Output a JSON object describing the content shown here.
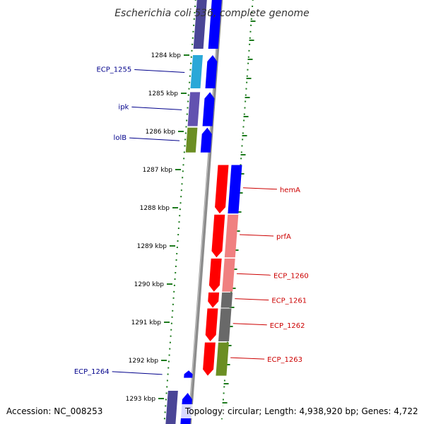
{
  "title": {
    "organism": "Escherichia coli 536",
    "suffix": ", complete genome"
  },
  "footer": {
    "accession": "Accession: NC_008253",
    "topology": "Topology: circular; Length: 4,938,920 bp; Genes: 4,722"
  },
  "ticks": [
    {
      "label": "1284 kbp",
      "kbp": 1284
    },
    {
      "label": "1285 kbp",
      "kbp": 1285
    },
    {
      "label": "1286 kbp",
      "kbp": 1286
    },
    {
      "label": "1287 kbp",
      "kbp": 1287
    },
    {
      "label": "1288 kbp",
      "kbp": 1288
    },
    {
      "label": "1289 kbp",
      "kbp": 1289
    },
    {
      "label": "1290 kbp",
      "kbp": 1290
    },
    {
      "label": "1291 kbp",
      "kbp": 1291
    },
    {
      "label": "1292 kbp",
      "kbp": 1292
    },
    {
      "label": "1293 kbp",
      "kbp": 1293
    }
  ],
  "genes_reverse": [
    {
      "name": "ECP_1255",
      "label": "ECP_1255",
      "start_kbp": 1284.0,
      "end_kbp": 1284.87,
      "cog_color": "#2aa8d8"
    },
    {
      "name": "ipk",
      "label": "ipk",
      "start_kbp": 1284.97,
      "end_kbp": 1285.86,
      "cog_color": "#6252b0"
    },
    {
      "name": "lolB",
      "label": "lolB",
      "start_kbp": 1285.9,
      "end_kbp": 1286.55,
      "cog_color": "#6b8e23"
    },
    {
      "name": "ECP_1264",
      "label": "ECP_1264",
      "start_kbp": 1292.3,
      "end_kbp": 1292.4,
      "cog_color": "#0000ff"
    }
  ],
  "genes_forward": [
    {
      "name": "hemA",
      "label": "hemA",
      "start_kbp": 1286.88,
      "end_kbp": 1288.15,
      "cog_color": "#0000ff"
    },
    {
      "name": "prfA",
      "label": "prfA",
      "start_kbp": 1288.18,
      "end_kbp": 1289.3,
      "cog_color": "#f08080"
    },
    {
      "name": "ECP_1260",
      "label": "ECP_1260",
      "start_kbp": 1289.33,
      "end_kbp": 1290.2,
      "cog_color": "#f08080"
    },
    {
      "name": "ECP_1261",
      "label": "ECP_1261",
      "start_kbp": 1290.22,
      "end_kbp": 1290.62,
      "cog_color": "#696969"
    },
    {
      "name": "ECP_1262",
      "label": "ECP_1262",
      "start_kbp": 1290.64,
      "end_kbp": 1291.5,
      "cog_color": "#696969"
    },
    {
      "name": "ECP_1263",
      "label": "ECP_1263",
      "start_kbp": 1291.53,
      "end_kbp": 1292.4,
      "cog_color": "#6b8e23"
    }
  ],
  "colors": {
    "reverse_label": "#00008b",
    "forward_label": "#cc0000",
    "cds_reverse": "#0000ff",
    "cds_forward": "#ff0000",
    "backbone": "#8c8c8c",
    "gc_skew": "#1e7b1e"
  }
}
